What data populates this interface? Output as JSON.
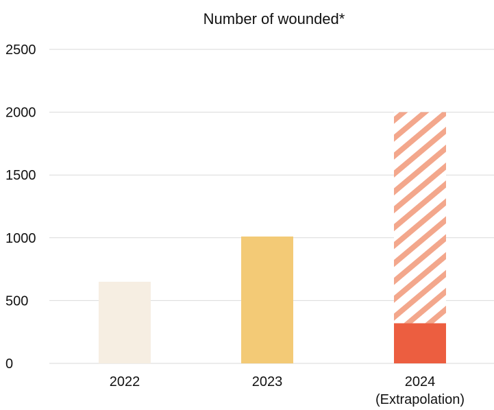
{
  "chart_data": {
    "type": "bar",
    "title": "Number of wounded*",
    "xlabel": "",
    "ylabel": "",
    "categories": [
      {
        "label": "2022",
        "sublabel": ""
      },
      {
        "label": "2023",
        "sublabel": ""
      },
      {
        "label": "2024",
        "sublabel": "(Extrapolation)"
      }
    ],
    "series": [
      {
        "values": [
          650,
          1010,
          320
        ],
        "colors": [
          "#f6eee2",
          "#f3ca76",
          "#ec5e40"
        ]
      },
      {
        "values": [
          0,
          0,
          1680
        ],
        "pattern": "diagonal-hatch",
        "color": "#f3a78c"
      }
    ],
    "stacked": true,
    "ylim": [
      0,
      2500
    ],
    "yticks": [
      0,
      500,
      1000,
      1500,
      2000,
      2500
    ],
    "grid": true,
    "legend": "none"
  }
}
